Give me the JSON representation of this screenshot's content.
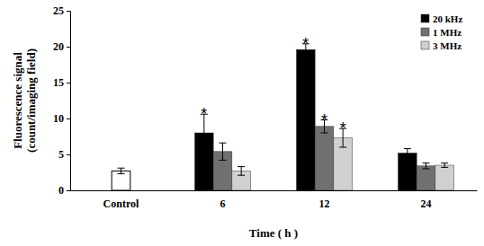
{
  "chart_data": {
    "type": "bar",
    "x_label": "Time ( h )",
    "y_label": [
      "Fluorescence signal",
      "(count/imaging field)"
    ],
    "categories": [
      "Control",
      "6",
      "12",
      "24"
    ],
    "control": {
      "value": 2.7,
      "error": 0.4,
      "color": "#ffffff"
    },
    "series": [
      {
        "name": "20 kHz",
        "color": "#000000",
        "values": [
          null,
          8.0,
          19.6,
          5.2
        ],
        "errors": [
          null,
          2.6,
          0.8,
          0.6
        ],
        "annotations": [
          null,
          "*",
          "*",
          null
        ]
      },
      {
        "name": "1 MHz",
        "color": "#707070",
        "values": [
          null,
          5.4,
          8.9,
          3.4
        ],
        "errors": [
          null,
          1.2,
          0.9,
          0.4
        ],
        "annotations": [
          null,
          null,
          "*",
          null
        ]
      },
      {
        "name": "3 MHz",
        "color": "#d0d0d0",
        "values": [
          null,
          2.7,
          7.3,
          3.5
        ],
        "errors": [
          null,
          0.6,
          1.3,
          0.3
        ],
        "annotations": [
          null,
          null,
          "*",
          null
        ]
      }
    ],
    "ylim": [
      0,
      25
    ],
    "yticks": [
      0,
      5,
      10,
      15,
      20,
      25
    ],
    "legend": "upper-right",
    "grid": false
  }
}
